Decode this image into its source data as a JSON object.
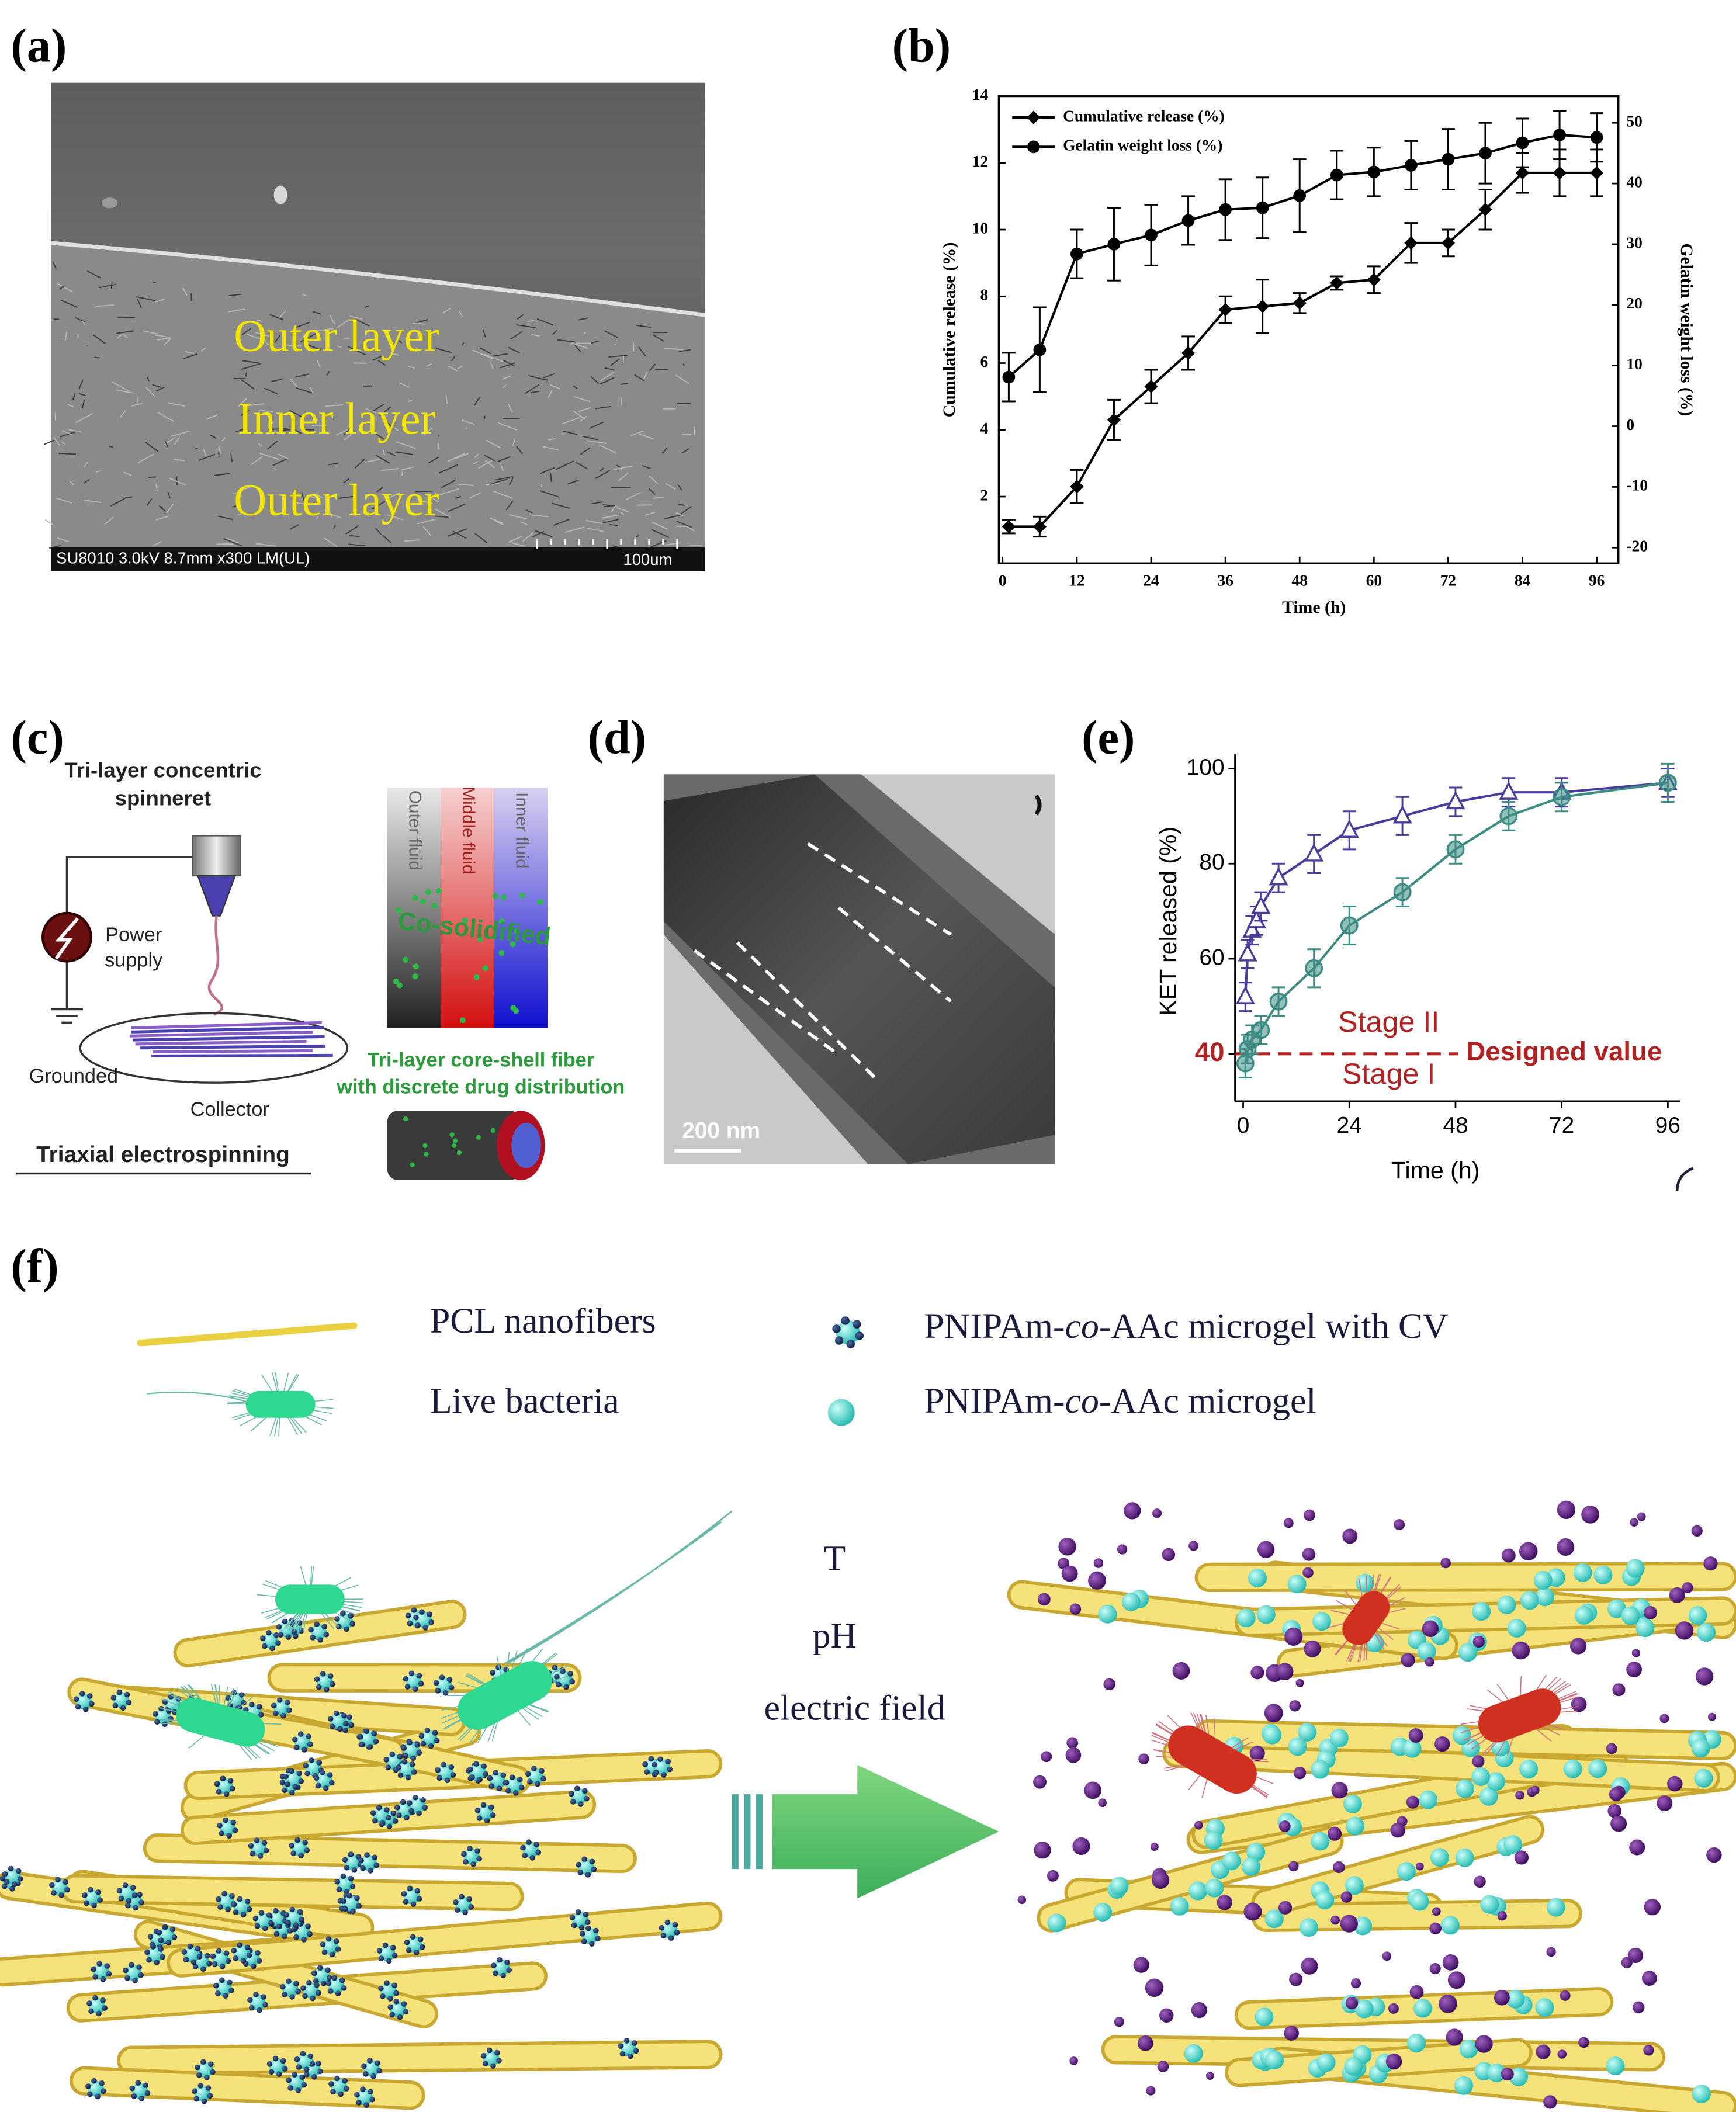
{
  "panel_labels": [
    "(a)",
    "(b)",
    "(c)",
    "(d)",
    "(e)",
    "(f)"
  ],
  "panel_a": {
    "layers": [
      "Outer layer",
      "Inner layer",
      "Outer layer"
    ],
    "info": "SU8010 3.0kV 8.7mm x300 LM(UL)",
    "scale": "100um"
  },
  "chart_data": [
    {
      "type": "line",
      "x": [
        1,
        6,
        12,
        18,
        24,
        30,
        36,
        42,
        48,
        54,
        60,
        66,
        72,
        78,
        84,
        90,
        96
      ],
      "xlabel": "Time (h)",
      "ylabel": "Cumulative release (%)",
      "y2label": "Gelatin weight loss (%)",
      "xlim": [
        -0.6,
        99.5
      ],
      "xticks": [
        0,
        12,
        24,
        36,
        48,
        60,
        72,
        84,
        96
      ],
      "ylim": [
        0,
        14
      ],
      "yticks": [
        2,
        4,
        6,
        8,
        10,
        12,
        14
      ],
      "y2lim": [
        -22.6,
        54.4
      ],
      "y2ticks": [
        -20,
        -10,
        0,
        10,
        20,
        30,
        40,
        50
      ],
      "legend": "upper left",
      "series": [
        {
          "name": "Cumulative release (%)",
          "color": "#000000",
          "marker": "diamond",
          "values": [
            1.1,
            1.1,
            2.3,
            4.3,
            5.3,
            6.3,
            7.6,
            7.7,
            7.8,
            8.4,
            8.5,
            9.6,
            9.6,
            10.6,
            11.7,
            11.7,
            11.7
          ],
          "errors": [
            0.2,
            0.3,
            0.5,
            0.6,
            0.5,
            0.5,
            0.4,
            0.8,
            0.3,
            0.2,
            0.4,
            0.6,
            0.4,
            0.6,
            0.6,
            0.7,
            0.7
          ]
        },
        {
          "name": "Gelatin weight loss (%)",
          "color": "#000000",
          "marker": "circle",
          "axis": "y2",
          "values": [
            8.1,
            12.6,
            28.4,
            30,
            31.5,
            33.9,
            35.7,
            36,
            38,
            41.4,
            41.9,
            43,
            44,
            45,
            46.7,
            48,
            47.6
          ],
          "errors": [
            4,
            7,
            4,
            6,
            5,
            4,
            5,
            5,
            6,
            4,
            4,
            4,
            5,
            5,
            4,
            4,
            4
          ]
        }
      ]
    },
    {
      "type": "line",
      "xlabel": "Time (h)",
      "ylabel": "KET released (%)",
      "xlim": [
        -1.8,
        98.7
      ],
      "xticks": [
        0,
        24,
        48,
        72,
        96
      ],
      "ylim": [
        30,
        103
      ],
      "yticks": [
        40,
        60,
        80,
        100
      ],
      "reference_line": {
        "value": 40,
        "color": "#b22222"
      },
      "annotations": [
        "Stage II",
        "Designed value",
        "Stage I"
      ],
      "series": [
        {
          "marker": "triangle",
          "color": "#4a3c9c",
          "x": [
            0.5,
            1,
            2,
            3,
            4,
            8,
            16,
            24,
            36,
            48,
            60,
            72,
            96
          ],
          "values": [
            52,
            61,
            66,
            68,
            71,
            77,
            82,
            87,
            90,
            93,
            95,
            95,
            97
          ],
          "errors": [
            3,
            3,
            3,
            3,
            3,
            3,
            4,
            4,
            4,
            3,
            3,
            3,
            3
          ]
        },
        {
          "marker": "circle",
          "color": "#3c8c84",
          "x": [
            0.5,
            1,
            2,
            4,
            8,
            16,
            24,
            36,
            48,
            60,
            72,
            96
          ],
          "values": [
            38,
            41,
            43,
            45,
            51,
            58,
            67,
            74,
            83,
            90,
            94,
            97
          ],
          "errors": [
            3,
            3,
            3,
            3,
            3,
            4,
            4,
            3,
            3,
            3,
            3,
            4
          ]
        }
      ]
    }
  ],
  "panel_c": {
    "title": [
      "Tri-layer concentric",
      "spinneret"
    ],
    "power": [
      "Power",
      "supply"
    ],
    "grounded": "Grounded",
    "collector": "Collector",
    "method": "Triaxial electrospinning",
    "fluids": [
      "Outer fluid",
      "Middle fluid",
      "Inner fluid"
    ],
    "state": "Co-solidified",
    "fiber": [
      "Tri-layer core-shell fiber",
      "with discrete drug distribution"
    ]
  },
  "panel_d": {
    "scale": "200 nm"
  },
  "panel_f": {
    "legend": {
      "fiber": "PCL nanofibers",
      "bacteria": "Live bacteria",
      "microgel_cv": [
        "PNIPAm-",
        "co",
        "-AAc microgel with CV"
      ],
      "microgel": [
        "PNIPAm-",
        "co",
        "-AAc microgel"
      ]
    },
    "stimuli": [
      "T",
      "pH",
      "electric field"
    ]
  }
}
